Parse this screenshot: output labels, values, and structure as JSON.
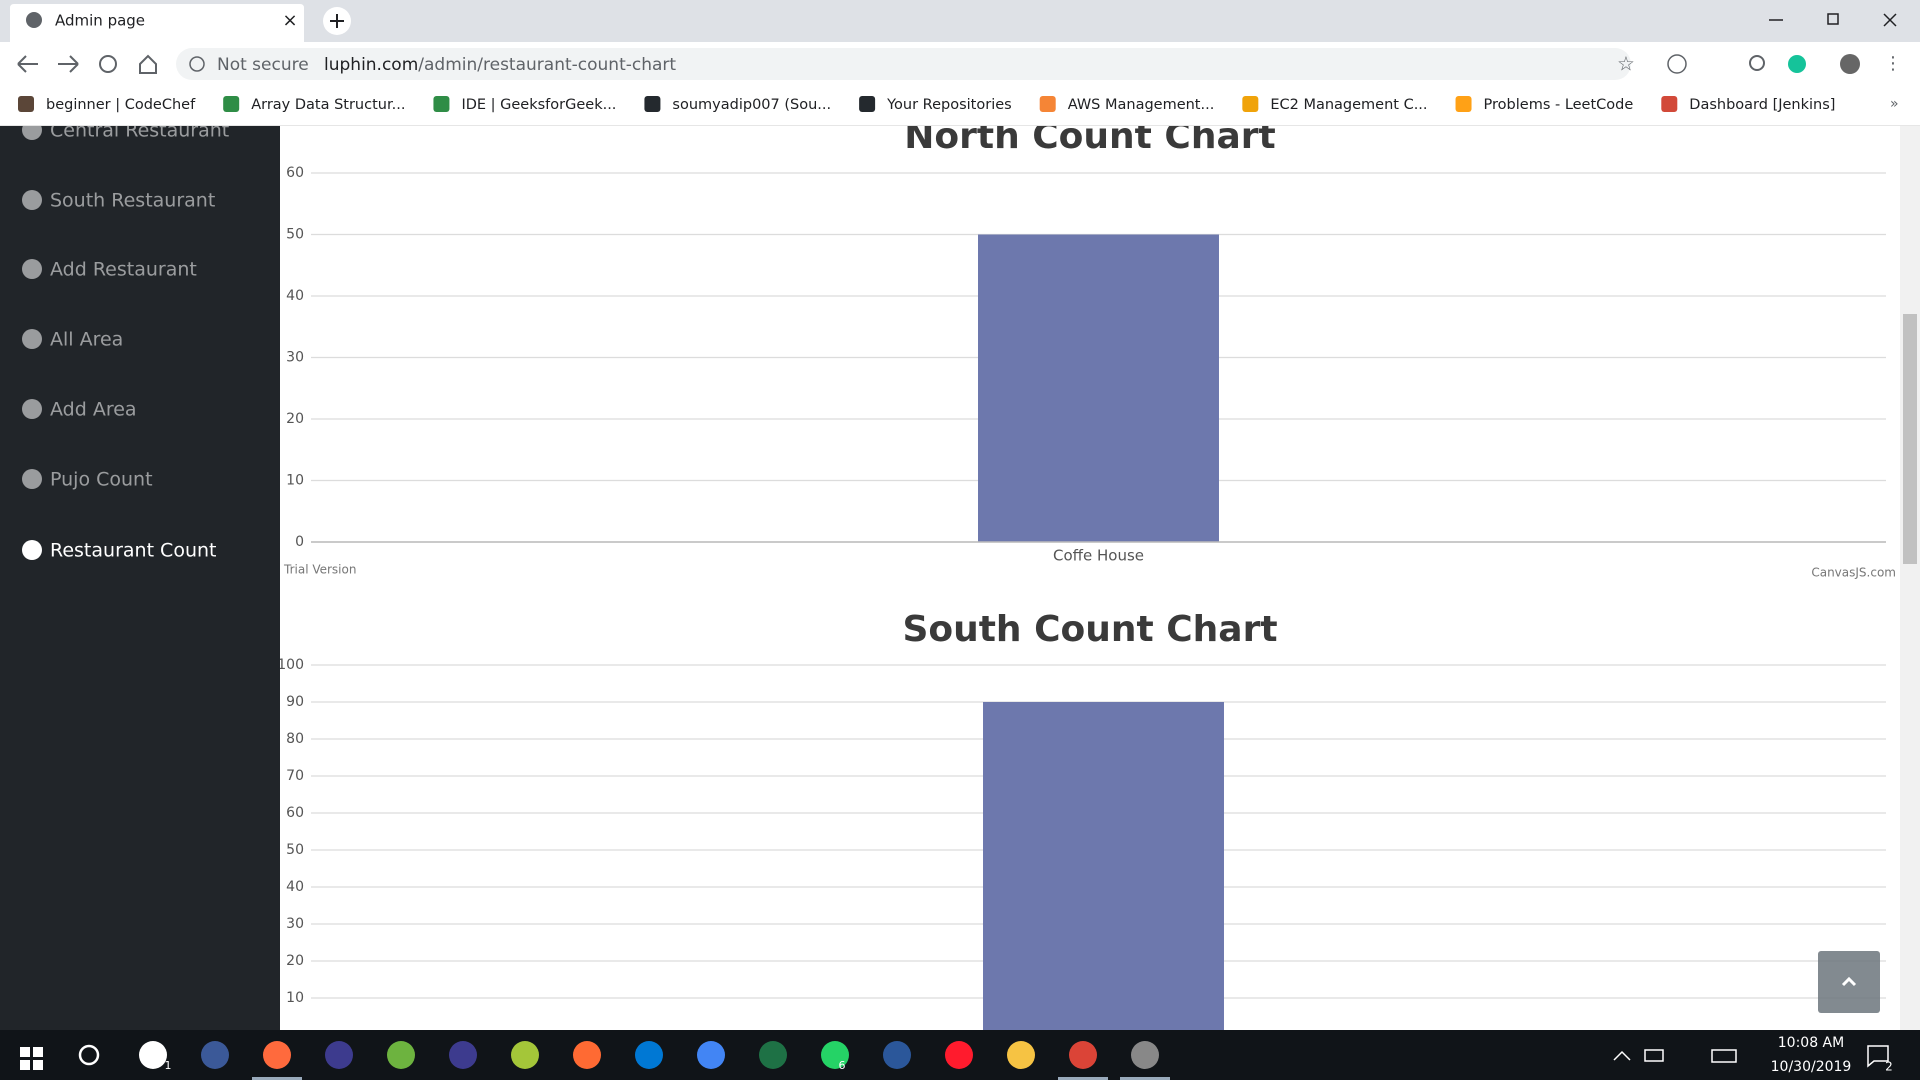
{
  "browser": {
    "tab_title": "Admin page",
    "security": "Not secure",
    "url_domain": "luphin.com",
    "url_path": "/admin/restaurant-count-chart",
    "bookmarks": [
      "beginner | CodeChef",
      "Array Data Structur...",
      "IDE | GeeksforGeek...",
      "soumyadip007 (Sou...",
      "Your Repositories",
      "AWS Management...",
      "EC2 Management C...",
      "Problems - LeetCode",
      "Dashboard [Jenkins]"
    ]
  },
  "sidebar": {
    "items": [
      "Central Restaurant",
      "South Restaurant",
      "Add Restaurant",
      "All Area",
      "Add Area",
      "Pujo Count",
      "Restaurant Count"
    ]
  },
  "chart_data": [
    {
      "type": "bar",
      "title": "North Count Chart",
      "categories": [
        "Coffe House"
      ],
      "values": [
        50
      ],
      "color": "#6d78ad",
      "ylim": [
        0,
        60
      ],
      "yticks": [
        0,
        10,
        20,
        30,
        40,
        50,
        60
      ],
      "grid": true,
      "credit_left": "Trial Version",
      "credit_right": "CanvasJS.com"
    },
    {
      "type": "bar",
      "title": "South Count Chart",
      "categories": [
        null
      ],
      "values": [
        90
      ],
      "color": "#6d78ad",
      "ylim": [
        0,
        100
      ],
      "yticks": [
        10,
        20,
        30,
        40,
        50,
        60,
        70,
        80,
        90,
        100
      ],
      "grid": true
    }
  ],
  "taskbar": {
    "time": "10:08 AM",
    "date": "10/30/2019",
    "mail_badge": "1",
    "whatsapp_badge": "6",
    "notification_badge": "2"
  }
}
